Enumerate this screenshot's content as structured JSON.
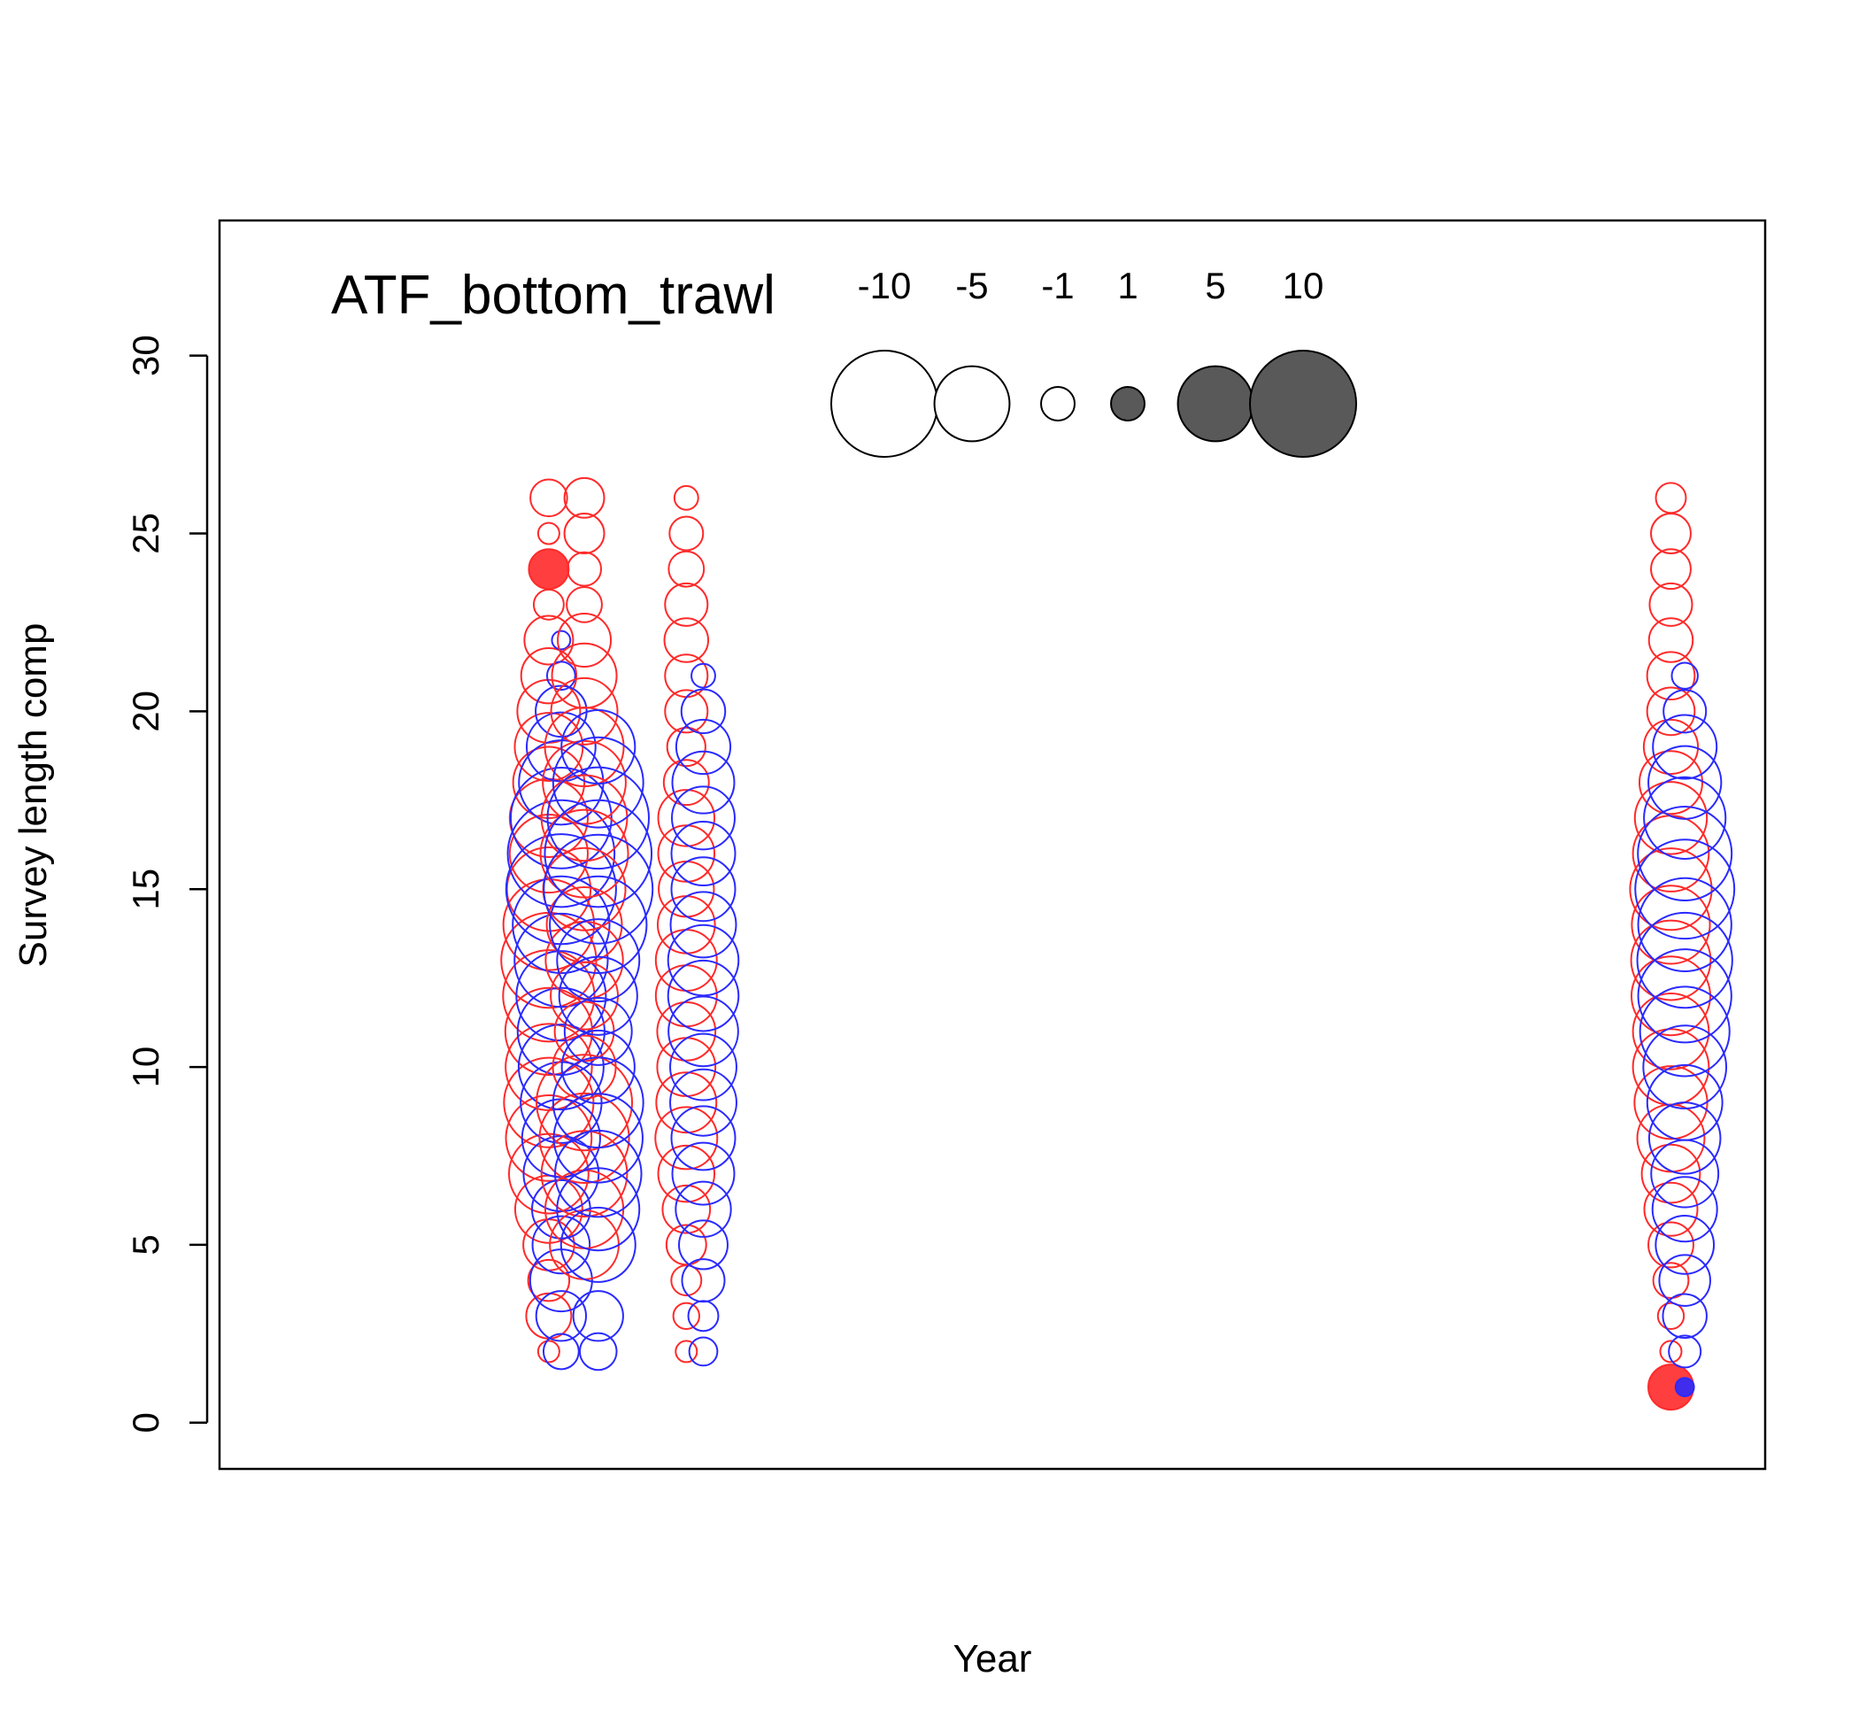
{
  "chart_data": {
    "type": "scatter",
    "title": "ATF_bottom_trawl",
    "xlabel": "Year",
    "ylabel": "Survey length comp",
    "ylim": [
      -1.3,
      33.8
    ],
    "xlim": [
      0,
      1
    ],
    "yticks": [
      0,
      5,
      10,
      15,
      20,
      25,
      30
    ],
    "grid": false,
    "x_tick_labels_shown": false,
    "legend": {
      "placement": "top",
      "entries": [
        {
          "label": "-10",
          "value": -10
        },
        {
          "label": "-5",
          "value": -5
        },
        {
          "label": "-1",
          "value": -1
        },
        {
          "label": "1",
          "value": 1
        },
        {
          "label": "5",
          "value": 5
        },
        {
          "label": "10",
          "value": 10
        }
      ]
    },
    "colors": {
      "female": "#ff2a2a",
      "male": "#2a2aff",
      "legend_fill": "#595959",
      "axis": "#000000"
    },
    "series": [
      {
        "color": "female",
        "x": 0.213,
        "points": [
          {
            "y": 2,
            "value": -0.4
          },
          {
            "y": 3,
            "value": -1.8
          },
          {
            "y": 4,
            "value": -1.5
          },
          {
            "y": 5,
            "value": -2.3
          },
          {
            "y": 6,
            "value": -4.0
          },
          {
            "y": 7,
            "value": -5.6
          },
          {
            "y": 8,
            "value": -6.5
          },
          {
            "y": 9,
            "value": -7.1
          },
          {
            "y": 10,
            "value": -6.6
          },
          {
            "y": 11,
            "value": -6.7
          },
          {
            "y": 12,
            "value": -7.4
          },
          {
            "y": 13,
            "value": -8.0
          },
          {
            "y": 14,
            "value": -7.3
          },
          {
            "y": 15,
            "value": -6.2
          },
          {
            "y": 16,
            "value": -5.4
          },
          {
            "y": 17,
            "value": -5.4
          },
          {
            "y": 18,
            "value": -4.5
          },
          {
            "y": 19,
            "value": -4.1
          },
          {
            "y": 20,
            "value": -3.5
          },
          {
            "y": 21,
            "value": -2.7
          },
          {
            "y": 22,
            "value": -2.1
          },
          {
            "y": 23,
            "value": -0.8
          },
          {
            "y": 24,
            "value": 1.4
          },
          {
            "y": 25,
            "value": -0.4
          },
          {
            "y": 26,
            "value": -1.2
          }
        ]
      },
      {
        "color": "male",
        "x": 0.221,
        "points": [
          {
            "y": 2,
            "value": -1.1
          },
          {
            "y": 3,
            "value": -2.2
          },
          {
            "y": 4,
            "value": -3.4
          },
          {
            "y": 5,
            "value": -2.9
          },
          {
            "y": 6,
            "value": -3.0
          },
          {
            "y": 7,
            "value": -5.0
          },
          {
            "y": 8,
            "value": -5.4
          },
          {
            "y": 9,
            "value": -5.8
          },
          {
            "y": 10,
            "value": -6.4
          },
          {
            "y": 11,
            "value": -6.7
          },
          {
            "y": 12,
            "value": -7.1
          },
          {
            "y": 13,
            "value": -7.7
          },
          {
            "y": 14,
            "value": -8.3
          },
          {
            "y": 15,
            "value": -10.7
          },
          {
            "y": 16,
            "value": -10.1
          },
          {
            "y": 17,
            "value": -9.0
          },
          {
            "y": 18,
            "value": -6.3
          },
          {
            "y": 19,
            "value": -4.2
          },
          {
            "y": 20,
            "value": -2.3
          },
          {
            "y": 21,
            "value": -0.7
          },
          {
            "y": 22,
            "value": -0.3
          }
        ]
      },
      {
        "color": "female",
        "x": 0.236,
        "points": [
          {
            "y": 5,
            "value": -4.2
          },
          {
            "y": 6,
            "value": -5.4
          },
          {
            "y": 7,
            "value": -6.5
          },
          {
            "y": 8,
            "value": -7.1
          },
          {
            "y": 9,
            "value": -8.1
          },
          {
            "y": 10,
            "value": -3.5
          },
          {
            "y": 11,
            "value": -3.1
          },
          {
            "y": 12,
            "value": -4.0
          },
          {
            "y": 13,
            "value": -5.3
          },
          {
            "y": 14,
            "value": -5.0
          },
          {
            "y": 15,
            "value": -6.0
          },
          {
            "y": 16,
            "value": -6.8
          },
          {
            "y": 17,
            "value": -6.5
          },
          {
            "y": 18,
            "value": -6.1
          },
          {
            "y": 19,
            "value": -5.5
          },
          {
            "y": 20,
            "value": -3.9
          },
          {
            "y": 21,
            "value": -3.7
          },
          {
            "y": 22,
            "value": -2.5
          },
          {
            "y": 23,
            "value": -1.1
          },
          {
            "y": 24,
            "value": -1.0
          },
          {
            "y": 25,
            "value": -1.4
          },
          {
            "y": 26,
            "value": -1.4
          }
        ]
      },
      {
        "color": "male",
        "x": 0.245,
        "points": [
          {
            "y": 2,
            "value": -1.2
          },
          {
            "y": 3,
            "value": -2.2
          },
          {
            "y": 5,
            "value": -4.9
          },
          {
            "y": 6,
            "value": -6.0
          },
          {
            "y": 7,
            "value": -6.6
          },
          {
            "y": 8,
            "value": -7.0
          },
          {
            "y": 9,
            "value": -7.2
          },
          {
            "y": 10,
            "value": -4.7
          },
          {
            "y": 11,
            "value": -4.0
          },
          {
            "y": 12,
            "value": -5.4
          },
          {
            "y": 13,
            "value": -6.0
          },
          {
            "y": 14,
            "value": -8.3
          },
          {
            "y": 15,
            "value": -10.5
          },
          {
            "y": 16,
            "value": -10.1
          },
          {
            "y": 17,
            "value": -9.1
          },
          {
            "y": 18,
            "value": -7.2
          },
          {
            "y": 19,
            "value": -4.8
          }
        ]
      },
      {
        "color": "female",
        "x": 0.302,
        "points": [
          {
            "y": 2,
            "value": -0.4
          },
          {
            "y": 3,
            "value": -0.6
          },
          {
            "y": 4,
            "value": -0.8
          },
          {
            "y": 5,
            "value": -1.4
          },
          {
            "y": 6,
            "value": -2.0
          },
          {
            "y": 7,
            "value": -2.8
          },
          {
            "y": 8,
            "value": -3.4
          },
          {
            "y": 9,
            "value": -3.2
          },
          {
            "y": 10,
            "value": -3.0
          },
          {
            "y": 11,
            "value": -3.0
          },
          {
            "y": 12,
            "value": -3.3
          },
          {
            "y": 13,
            "value": -3.3
          },
          {
            "y": 14,
            "value": -2.9
          },
          {
            "y": 15,
            "value": -2.7
          },
          {
            "y": 16,
            "value": -2.8
          },
          {
            "y": 17,
            "value": -2.8
          },
          {
            "y": 18,
            "value": -1.8
          },
          {
            "y": 19,
            "value": -1.3
          },
          {
            "y": 20,
            "value": -1.6
          },
          {
            "y": 21,
            "value": -1.6
          },
          {
            "y": 22,
            "value": -1.7
          },
          {
            "y": 23,
            "value": -1.6
          },
          {
            "y": 24,
            "value": -1.1
          },
          {
            "y": 25,
            "value": -1.0
          },
          {
            "y": 26,
            "value": -0.5
          }
        ]
      },
      {
        "color": "male",
        "x": 0.313,
        "points": [
          {
            "y": 2,
            "value": -0.7
          },
          {
            "y": 3,
            "value": -0.8
          },
          {
            "y": 4,
            "value": -1.6
          },
          {
            "y": 5,
            "value": -2.1
          },
          {
            "y": 6,
            "value": -2.7
          },
          {
            "y": 7,
            "value": -3.4
          },
          {
            "y": 8,
            "value": -3.6
          },
          {
            "y": 9,
            "value": -3.9
          },
          {
            "y": 10,
            "value": -3.9
          },
          {
            "y": 11,
            "value": -4.3
          },
          {
            "y": 12,
            "value": -4.4
          },
          {
            "y": 13,
            "value": -4.4
          },
          {
            "y": 14,
            "value": -3.8
          },
          {
            "y": 15,
            "value": -3.6
          },
          {
            "y": 16,
            "value": -3.6
          },
          {
            "y": 17,
            "value": -3.5
          },
          {
            "y": 18,
            "value": -3.4
          },
          {
            "y": 19,
            "value": -2.6
          },
          {
            "y": 20,
            "value": -1.7
          },
          {
            "y": 21,
            "value": -0.5
          }
        ]
      },
      {
        "color": "female",
        "x": 0.939,
        "points": [
          {
            "y": 1,
            "value": 1.8
          },
          {
            "y": 2,
            "value": -0.4
          },
          {
            "y": 3,
            "value": -0.6
          },
          {
            "y": 4,
            "value": -1.1
          },
          {
            "y": 5,
            "value": -1.8
          },
          {
            "y": 6,
            "value": -2.5
          },
          {
            "y": 7,
            "value": -3.0
          },
          {
            "y": 8,
            "value": -4.0
          },
          {
            "y": 9,
            "value": -4.7
          },
          {
            "y": 10,
            "value": -5.1
          },
          {
            "y": 11,
            "value": -5.1
          },
          {
            "y": 12,
            "value": -5.5
          },
          {
            "y": 13,
            "value": -5.6
          },
          {
            "y": 14,
            "value": -5.4
          },
          {
            "y": 15,
            "value": -5.9
          },
          {
            "y": 16,
            "value": -5.1
          },
          {
            "y": 17,
            "value": -4.6
          },
          {
            "y": 18,
            "value": -3.5
          },
          {
            "y": 19,
            "value": -2.6
          },
          {
            "y": 20,
            "value": -2.0
          },
          {
            "y": 21,
            "value": -2.0
          },
          {
            "y": 22,
            "value": -1.7
          },
          {
            "y": 23,
            "value": -1.6
          },
          {
            "y": 24,
            "value": -1.4
          },
          {
            "y": 25,
            "value": -1.4
          },
          {
            "y": 26,
            "value": -0.8
          }
        ]
      },
      {
        "color": "male",
        "x": 0.948,
        "points": [
          {
            "y": 1,
            "value": 0.3
          },
          {
            "y": 2,
            "value": -0.9
          },
          {
            "y": 3,
            "value": -1.7
          },
          {
            "y": 4,
            "value": -2.3
          },
          {
            "y": 5,
            "value": -3.0
          },
          {
            "y": 6,
            "value": -3.7
          },
          {
            "y": 7,
            "value": -4.0
          },
          {
            "y": 8,
            "value": -4.5
          },
          {
            "y": 9,
            "value": -5.0
          },
          {
            "y": 10,
            "value": -6.1
          },
          {
            "y": 11,
            "value": -7.1
          },
          {
            "y": 12,
            "value": -7.7
          },
          {
            "y": 13,
            "value": -8.0
          },
          {
            "y": 14,
            "value": -7.7
          },
          {
            "y": 15,
            "value": -8.7
          },
          {
            "y": 16,
            "value": -7.8
          },
          {
            "y": 17,
            "value": -5.9
          },
          {
            "y": 18,
            "value": -4.7
          },
          {
            "y": 19,
            "value": -3.6
          },
          {
            "y": 20,
            "value": -1.6
          },
          {
            "y": 21,
            "value": -0.6
          }
        ]
      }
    ]
  }
}
